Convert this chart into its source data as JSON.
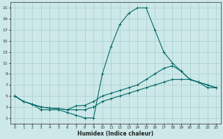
{
  "xlabel": "Humidex (Indice chaleur)",
  "bg_color": "#cce8e8",
  "grid_color": "#aacccc",
  "line_color": "#006666",
  "xlim": [
    -0.5,
    23.5
  ],
  "ylim": [
    0,
    22
  ],
  "xticks": [
    0,
    1,
    2,
    3,
    4,
    5,
    6,
    7,
    8,
    9,
    10,
    11,
    12,
    13,
    14,
    15,
    16,
    17,
    18,
    19,
    20,
    21,
    22,
    23
  ],
  "yticks": [
    1,
    3,
    5,
    7,
    9,
    11,
    13,
    15,
    17,
    19,
    21
  ],
  "line_spike_x": [
    0,
    1,
    2,
    3,
    4,
    5,
    6,
    7,
    8,
    9,
    10,
    11,
    12,
    13,
    14,
    15,
    16,
    17,
    18,
    19,
    20,
    21,
    22,
    23
  ],
  "line_spike_y": [
    5,
    4,
    3.5,
    2.5,
    2.5,
    2.5,
    2,
    1.5,
    1,
    1,
    9,
    14,
    18,
    20,
    21,
    21,
    17,
    13,
    11,
    9.5,
    8,
    7.5,
    7,
    6.5
  ],
  "line_mid_x": [
    0,
    1,
    2,
    3,
    4,
    5,
    6,
    7,
    8,
    9,
    10,
    11,
    12,
    13,
    14,
    15,
    16,
    17,
    18,
    19,
    20,
    21,
    22,
    23
  ],
  "line_mid_y": [
    5,
    4,
    3.5,
    3,
    2.8,
    2.7,
    2.5,
    3.2,
    3.3,
    4,
    5,
    5.5,
    6,
    6.5,
    7,
    8,
    9,
    10,
    10.5,
    9.5,
    8,
    7.5,
    7,
    6.5
  ],
  "line_flat_x": [
    0,
    1,
    2,
    3,
    4,
    5,
    6,
    7,
    8,
    9,
    10,
    11,
    12,
    13,
    14,
    15,
    16,
    17,
    18,
    19,
    20,
    21,
    22,
    23
  ],
  "line_flat_y": [
    5,
    4,
    3.5,
    3,
    2.8,
    2.7,
    2.5,
    2.5,
    2.5,
    3,
    4,
    4.5,
    5,
    5.5,
    6,
    6.5,
    7,
    7.5,
    8,
    8,
    8,
    7.5,
    6.5,
    6.5
  ]
}
